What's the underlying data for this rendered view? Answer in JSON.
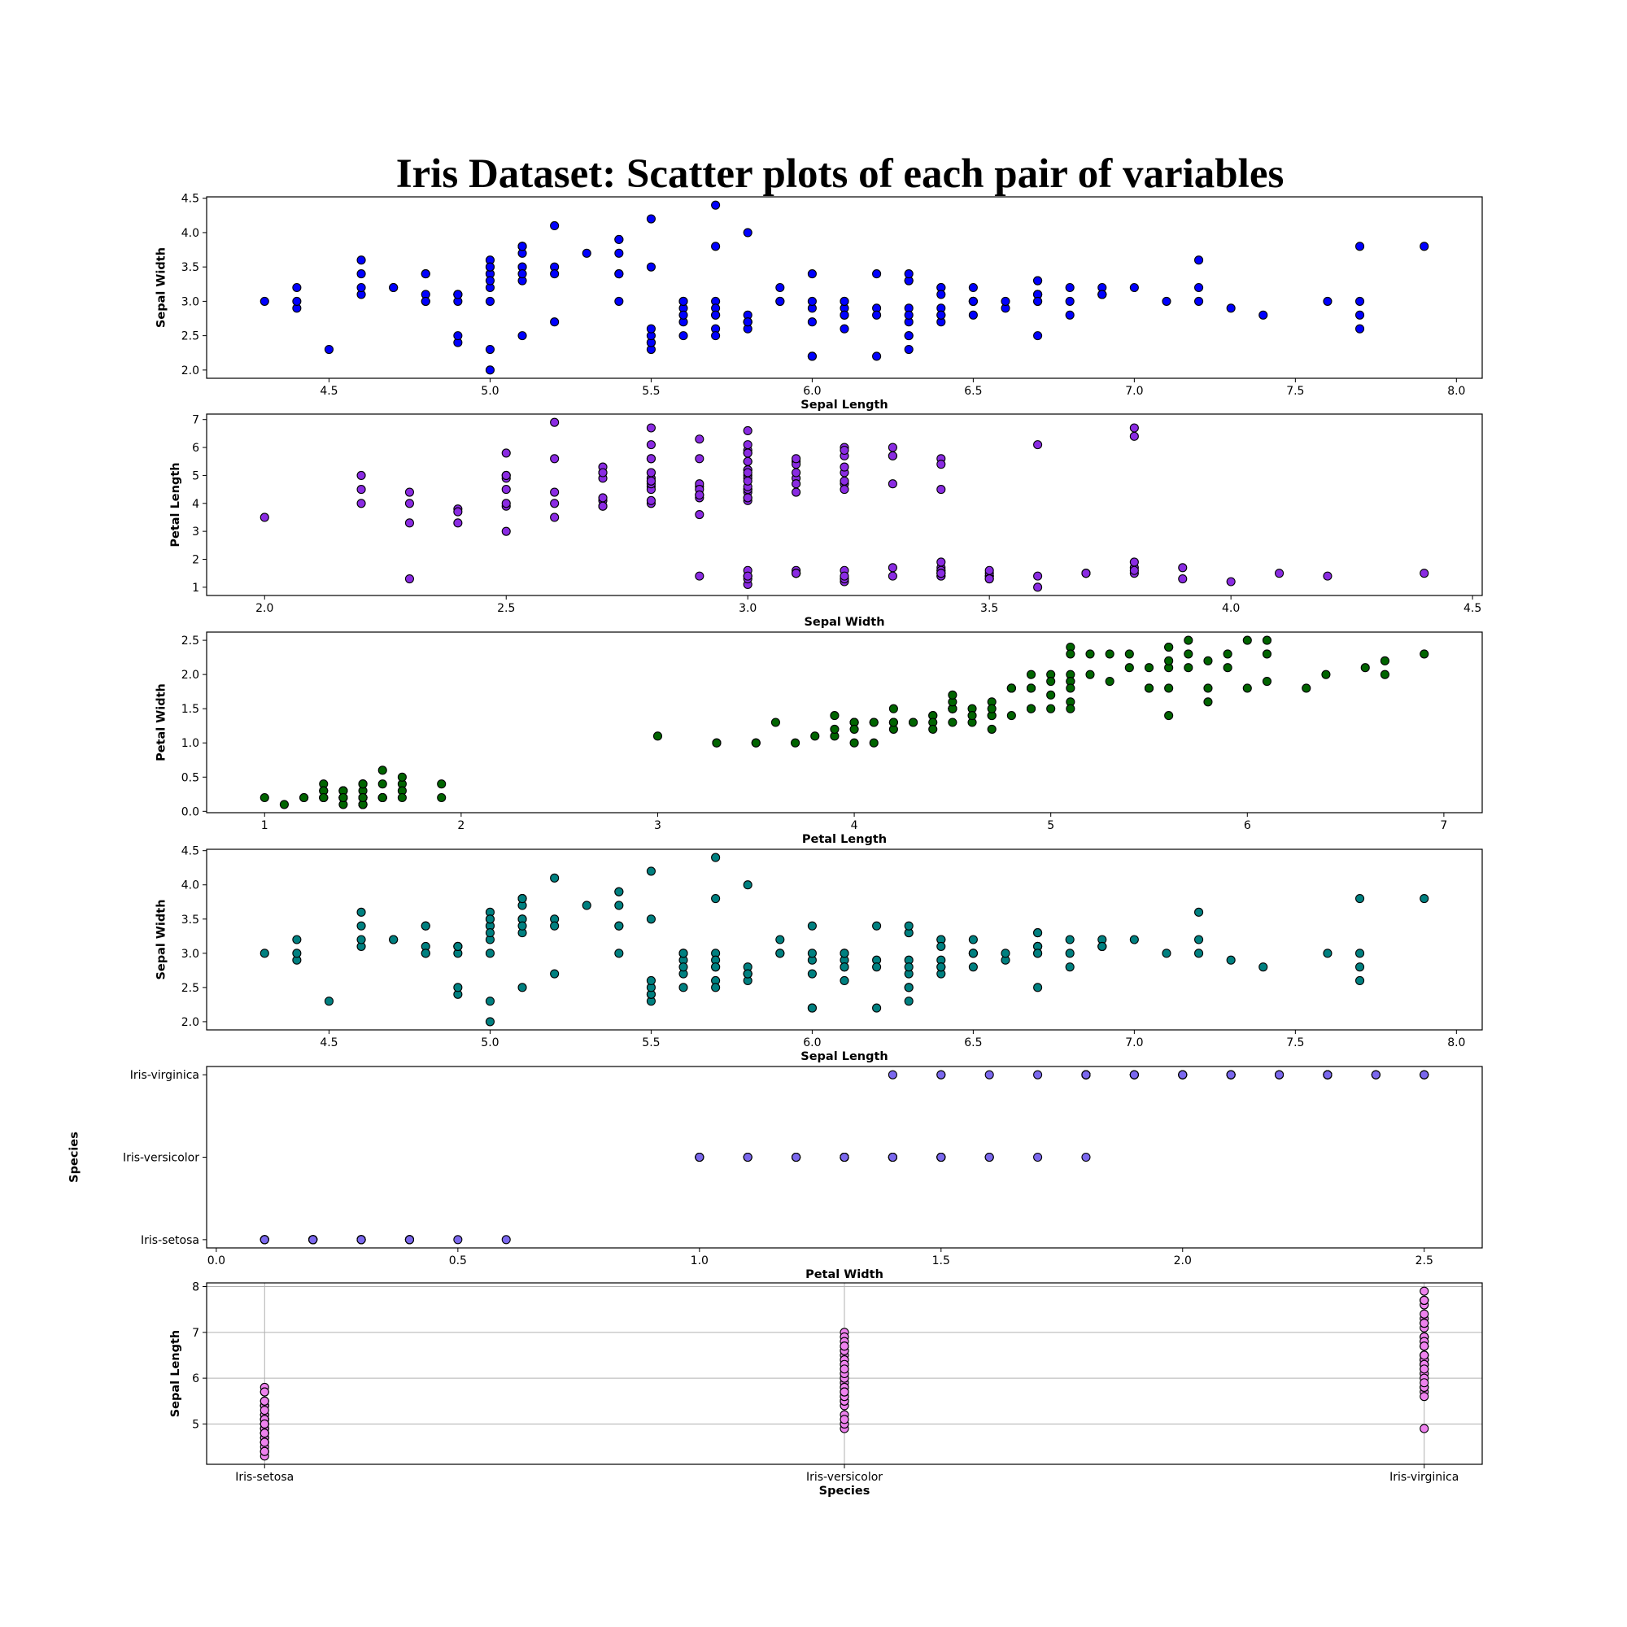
{
  "figure": {
    "title": "Iris Dataset: Scatter plots of each pair of variables"
  },
  "species": {
    "setosa": {
      "sepal_length": [
        5.1,
        4.9,
        4.7,
        4.6,
        5.0,
        5.4,
        4.6,
        5.0,
        4.4,
        4.9,
        5.4,
        4.8,
        4.8,
        4.3,
        5.8,
        5.7,
        5.4,
        5.1,
        5.7,
        5.1,
        5.4,
        5.1,
        4.6,
        5.1,
        4.8,
        5.0,
        5.0,
        5.2,
        5.2,
        4.7,
        4.8,
        5.4,
        5.2,
        5.5,
        4.9,
        5.0,
        5.5,
        4.9,
        4.4,
        5.1,
        5.0,
        4.5,
        4.4,
        5.0,
        5.1,
        4.8,
        5.1,
        4.6,
        5.3,
        5.0
      ],
      "sepal_width": [
        3.5,
        3.0,
        3.2,
        3.1,
        3.6,
        3.9,
        3.4,
        3.4,
        2.9,
        3.1,
        3.7,
        3.4,
        3.0,
        3.0,
        4.0,
        4.4,
        3.9,
        3.5,
        3.8,
        3.8,
        3.4,
        3.7,
        3.6,
        3.3,
        3.4,
        3.0,
        3.4,
        3.5,
        3.4,
        3.2,
        3.1,
        3.4,
        4.1,
        4.2,
        3.1,
        3.2,
        3.5,
        3.1,
        3.0,
        3.4,
        3.5,
        2.3,
        3.2,
        3.5,
        3.8,
        3.0,
        3.8,
        3.2,
        3.7,
        3.3
      ],
      "petal_length": [
        1.4,
        1.4,
        1.3,
        1.5,
        1.4,
        1.7,
        1.4,
        1.5,
        1.4,
        1.5,
        1.5,
        1.6,
        1.4,
        1.1,
        1.2,
        1.5,
        1.3,
        1.4,
        1.7,
        1.5,
        1.7,
        1.5,
        1.0,
        1.7,
        1.9,
        1.6,
        1.6,
        1.5,
        1.4,
        1.6,
        1.6,
        1.5,
        1.5,
        1.4,
        1.5,
        1.2,
        1.3,
        1.5,
        1.3,
        1.5,
        1.3,
        1.3,
        1.3,
        1.6,
        1.9,
        1.4,
        1.6,
        1.4,
        1.5,
        1.4
      ],
      "petal_width": [
        0.2,
        0.2,
        0.2,
        0.2,
        0.2,
        0.4,
        0.3,
        0.2,
        0.2,
        0.1,
        0.2,
        0.2,
        0.1,
        0.1,
        0.2,
        0.4,
        0.4,
        0.3,
        0.3,
        0.3,
        0.2,
        0.4,
        0.2,
        0.5,
        0.2,
        0.2,
        0.4,
        0.2,
        0.2,
        0.2,
        0.2,
        0.4,
        0.1,
        0.2,
        0.1,
        0.2,
        0.2,
        0.1,
        0.2,
        0.2,
        0.3,
        0.3,
        0.2,
        0.6,
        0.4,
        0.3,
        0.2,
        0.2,
        0.2,
        0.2
      ]
    },
    "versicolor": {
      "sepal_length": [
        7.0,
        6.4,
        6.9,
        5.5,
        6.5,
        5.7,
        6.3,
        4.9,
        6.6,
        5.2,
        5.0,
        5.9,
        6.0,
        6.1,
        5.6,
        6.7,
        5.6,
        5.8,
        6.2,
        5.6,
        5.9,
        6.1,
        6.3,
        6.1,
        6.4,
        6.6,
        6.8,
        6.7,
        6.0,
        5.7,
        5.5,
        5.5,
        5.8,
        6.0,
        5.4,
        6.0,
        6.7,
        6.3,
        5.6,
        5.5,
        5.5,
        6.1,
        5.8,
        5.0,
        5.6,
        5.7,
        5.7,
        6.2,
        5.1,
        5.7
      ],
      "sepal_width": [
        3.2,
        3.2,
        3.1,
        2.3,
        2.8,
        2.8,
        3.3,
        2.4,
        2.9,
        2.7,
        2.0,
        3.0,
        2.2,
        2.9,
        2.9,
        3.1,
        3.0,
        2.7,
        2.2,
        2.5,
        3.2,
        2.8,
        2.5,
        2.8,
        2.9,
        3.0,
        2.8,
        3.0,
        2.9,
        2.6,
        2.4,
        2.4,
        2.7,
        2.7,
        3.0,
        3.4,
        3.1,
        2.3,
        3.0,
        2.5,
        2.6,
        3.0,
        2.6,
        2.3,
        2.7,
        3.0,
        2.9,
        2.9,
        2.5,
        2.8
      ],
      "petal_length": [
        4.7,
        4.5,
        4.9,
        4.0,
        4.6,
        4.5,
        4.7,
        3.3,
        4.6,
        3.9,
        3.5,
        4.2,
        4.0,
        4.7,
        3.6,
        4.4,
        4.5,
        4.1,
        4.5,
        3.9,
        4.8,
        4.0,
        4.9,
        4.7,
        4.3,
        4.4,
        4.8,
        5.0,
        4.5,
        3.5,
        3.8,
        3.7,
        3.9,
        5.1,
        4.5,
        4.5,
        4.7,
        4.4,
        4.1,
        4.0,
        4.4,
        4.6,
        4.0,
        3.3,
        4.2,
        4.2,
        4.2,
        4.3,
        3.0,
        4.1
      ],
      "petal_width": [
        1.4,
        1.5,
        1.5,
        1.3,
        1.5,
        1.3,
        1.6,
        1.0,
        1.3,
        1.4,
        1.0,
        1.5,
        1.0,
        1.4,
        1.3,
        1.4,
        1.5,
        1.0,
        1.5,
        1.1,
        1.8,
        1.3,
        1.5,
        1.2,
        1.3,
        1.4,
        1.4,
        1.7,
        1.5,
        1.0,
        1.1,
        1.0,
        1.2,
        1.6,
        1.5,
        1.6,
        1.5,
        1.3,
        1.3,
        1.3,
        1.2,
        1.4,
        1.2,
        1.0,
        1.3,
        1.2,
        1.3,
        1.3,
        1.1,
        1.3
      ]
    },
    "virginica": {
      "sepal_length": [
        6.3,
        5.8,
        7.1,
        6.3,
        6.5,
        7.6,
        4.9,
        7.3,
        6.7,
        7.2,
        6.5,
        6.4,
        6.8,
        5.7,
        5.8,
        6.4,
        6.5,
        7.7,
        7.7,
        6.0,
        6.9,
        5.6,
        7.7,
        6.3,
        6.7,
        7.2,
        6.2,
        6.1,
        6.4,
        7.2,
        7.4,
        7.9,
        6.4,
        6.3,
        6.1,
        7.7,
        6.3,
        6.4,
        6.0,
        6.9,
        6.7,
        6.9,
        5.8,
        6.8,
        6.7,
        6.7,
        6.3,
        6.5,
        6.2,
        5.9
      ],
      "sepal_width": [
        3.3,
        2.7,
        3.0,
        2.9,
        3.0,
        3.0,
        2.5,
        2.9,
        2.5,
        3.6,
        3.2,
        2.7,
        3.0,
        2.5,
        2.8,
        3.2,
        3.0,
        3.8,
        2.6,
        2.2,
        3.2,
        2.8,
        2.8,
        2.7,
        3.3,
        3.2,
        2.8,
        3.0,
        2.8,
        3.0,
        2.8,
        3.8,
        2.8,
        2.8,
        2.6,
        3.0,
        3.4,
        3.1,
        3.0,
        3.1,
        3.1,
        3.1,
        2.7,
        3.2,
        3.3,
        3.0,
        2.5,
        3.0,
        3.4,
        3.0
      ],
      "petal_length": [
        6.0,
        5.1,
        5.9,
        5.6,
        5.8,
        6.6,
        4.5,
        6.3,
        5.8,
        6.1,
        5.1,
        5.3,
        5.5,
        5.0,
        5.1,
        5.3,
        5.5,
        6.7,
        6.9,
        5.0,
        5.7,
        4.9,
        6.7,
        4.9,
        5.7,
        6.0,
        4.8,
        4.9,
        5.6,
        5.8,
        6.1,
        6.4,
        5.6,
        5.1,
        5.6,
        6.1,
        5.6,
        5.5,
        4.8,
        5.4,
        5.6,
        5.1,
        5.1,
        5.9,
        5.7,
        5.2,
        5.0,
        5.2,
        5.4,
        5.1
      ],
      "petal_width": [
        2.5,
        1.9,
        2.1,
        1.8,
        2.2,
        2.1,
        1.7,
        1.8,
        1.8,
        2.5,
        2.0,
        1.9,
        2.1,
        2.0,
        2.4,
        2.3,
        1.8,
        2.2,
        2.3,
        1.5,
        2.3,
        2.0,
        2.0,
        1.8,
        2.1,
        1.8,
        1.8,
        1.8,
        2.1,
        1.6,
        1.9,
        2.0,
        2.2,
        1.5,
        1.4,
        2.3,
        2.4,
        1.8,
        1.8,
        2.1,
        2.4,
        2.3,
        1.9,
        2.3,
        2.5,
        2.3,
        1.9,
        2.0,
        2.3,
        1.8
      ]
    }
  },
  "chart_data": [
    {
      "type": "scatter",
      "x_var": "sepal_length",
      "y_var": "sepal_width",
      "xlabel": "Sepal Length",
      "ylabel": "Sepal Width",
      "xlim": [
        4.12,
        8.08
      ],
      "ylim": [
        1.88,
        4.52
      ],
      "xticks": [
        4.5,
        5.0,
        5.5,
        6.0,
        6.5,
        7.0,
        7.5,
        8.0
      ],
      "xtick_labels": [
        "4.5",
        "5.0",
        "5.5",
        "6.0",
        "6.5",
        "7.0",
        "7.5",
        "8.0"
      ],
      "yticks": [
        2.0,
        2.5,
        3.0,
        3.5,
        4.0,
        4.5
      ],
      "ytick_labels": [
        "2.0",
        "2.5",
        "3.0",
        "3.5",
        "4.0",
        "4.5"
      ],
      "color": "#0000ff",
      "grid": false
    },
    {
      "type": "scatter",
      "x_var": "sepal_width",
      "y_var": "petal_length",
      "xlabel": "Sepal Width",
      "ylabel": "Petal Length",
      "xlim": [
        1.88,
        4.52
      ],
      "ylim": [
        0.705,
        7.195
      ],
      "xticks": [
        2.0,
        2.5,
        3.0,
        3.5,
        4.0,
        4.5
      ],
      "xtick_labels": [
        "2.0",
        "2.5",
        "3.0",
        "3.5",
        "4.0",
        "4.5"
      ],
      "yticks": [
        1,
        2,
        3,
        4,
        5,
        6,
        7
      ],
      "ytick_labels": [
        "1",
        "2",
        "3",
        "4",
        "5",
        "6",
        "7"
      ],
      "color": "#8a2be2",
      "grid": false
    },
    {
      "type": "scatter",
      "x_var": "petal_length",
      "y_var": "petal_width",
      "xlabel": "Petal Length",
      "ylabel": "Petal Width",
      "xlim": [
        0.705,
        7.195
      ],
      "ylim": [
        -0.02,
        2.62
      ],
      "xticks": [
        1,
        2,
        3,
        4,
        5,
        6,
        7
      ],
      "xtick_labels": [
        "1",
        "2",
        "3",
        "4",
        "5",
        "6",
        "7"
      ],
      "yticks": [
        0.0,
        0.5,
        1.0,
        1.5,
        2.0,
        2.5
      ],
      "ytick_labels": [
        "0.0",
        "0.5",
        "1.0",
        "1.5",
        "2.0",
        "2.5"
      ],
      "color": "#006400",
      "grid": false
    },
    {
      "type": "scatter",
      "x_var": "sepal_length",
      "y_var": "sepal_width",
      "xlabel": "Sepal Length",
      "ylabel": "Sepal Width",
      "xlim": [
        4.12,
        8.08
      ],
      "ylim": [
        1.88,
        4.52
      ],
      "xticks": [
        4.5,
        5.0,
        5.5,
        6.0,
        6.5,
        7.0,
        7.5,
        8.0
      ],
      "xtick_labels": [
        "4.5",
        "5.0",
        "5.5",
        "6.0",
        "6.5",
        "7.0",
        "7.5",
        "8.0"
      ],
      "yticks": [
        2.0,
        2.5,
        3.0,
        3.5,
        4.0,
        4.5
      ],
      "ytick_labels": [
        "2.0",
        "2.5",
        "3.0",
        "3.5",
        "4.0",
        "4.5"
      ],
      "color": "#008080",
      "grid": false
    },
    {
      "type": "scatter",
      "x_var": "petal_width",
      "y_var": "species",
      "xlabel": "Petal Width",
      "ylabel": "Species",
      "xlim": [
        -0.02,
        2.62
      ],
      "ylim": [
        -0.1,
        2.1
      ],
      "xticks": [
        0.0,
        0.5,
        1.0,
        1.5,
        2.0,
        2.5
      ],
      "xtick_labels": [
        "0.0",
        "0.5",
        "1.0",
        "1.5",
        "2.0",
        "2.5"
      ],
      "yticks": [
        0,
        1,
        2
      ],
      "ytick_labels": [
        "Iris-setosa",
        "Iris-versicolor",
        "Iris-virginica"
      ],
      "color": "#7b68ee",
      "grid": false
    },
    {
      "type": "scatter",
      "x_var": "species",
      "y_var": "sepal_length",
      "xlabel": "Species",
      "ylabel": "Sepal Length",
      "xlim": [
        -0.1,
        2.1
      ],
      "ylim": [
        4.12,
        8.08
      ],
      "xticks": [
        0,
        1,
        2
      ],
      "xtick_labels": [
        "Iris-setosa",
        "Iris-versicolor",
        "Iris-virginica"
      ],
      "yticks": [
        5,
        6,
        7,
        8
      ],
      "ytick_labels": [
        "5",
        "6",
        "7",
        "8"
      ],
      "color": "#ee82ee",
      "grid": true
    }
  ]
}
